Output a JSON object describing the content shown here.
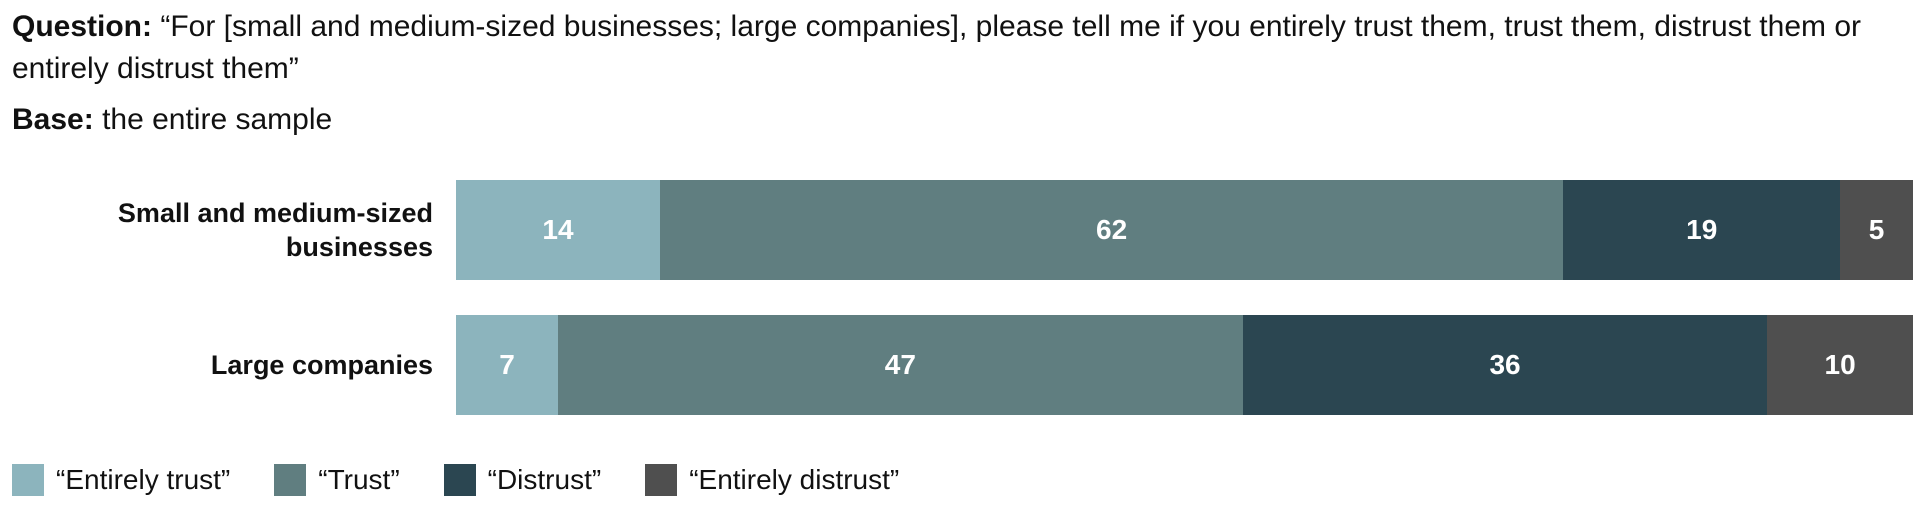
{
  "header": {
    "question_label": "Question:",
    "question_text": "“For [small and medium-sized businesses; large companies], please tell me if you entirely trust them, trust them, distrust them or entirely distrust them”",
    "base_label": "Base:",
    "base_text": "the entire sample"
  },
  "chart_data": {
    "type": "bar",
    "orientation": "horizontal",
    "stacked": true,
    "percent_stacked": true,
    "categories": [
      "Small and medium-sized businesses",
      "Large companies"
    ],
    "series": [
      {
        "name": "“Entirely trust”",
        "values": [
          14,
          7
        ],
        "color": "#8cb4bd"
      },
      {
        "name": "“Trust”",
        "values": [
          62,
          47
        ],
        "color": "#607e80"
      },
      {
        "name": "“Distrust”",
        "values": [
          19,
          36
        ],
        "color": "#2b4651"
      },
      {
        "name": "“Entirely distrust”",
        "values": [
          5,
          10
        ],
        "color": "#4f4f4f"
      }
    ],
    "legend_position": "bottom-left",
    "grid": false
  }
}
